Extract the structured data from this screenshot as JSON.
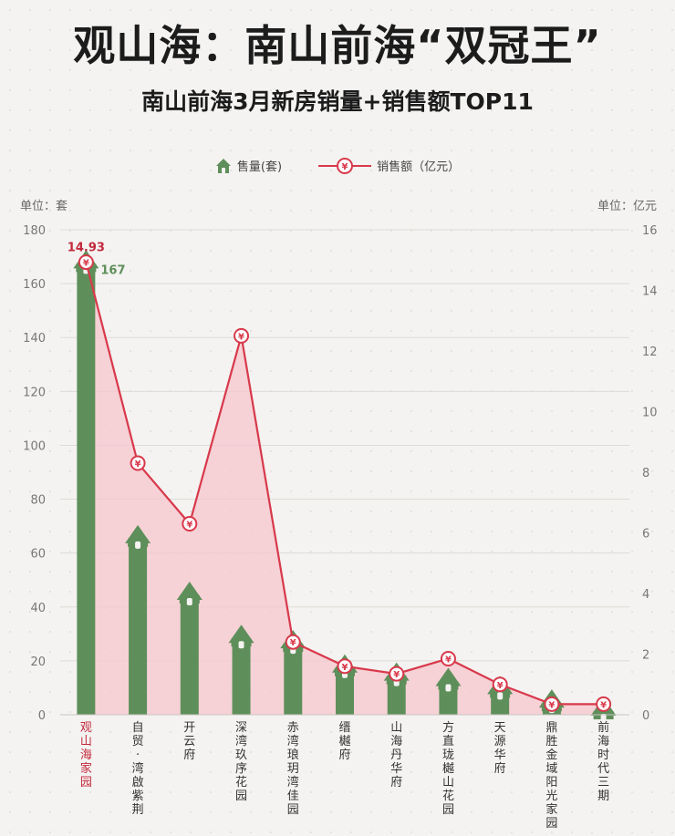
{
  "title": "观山海：南山前海“双冠王”",
  "subtitle": "南山前海3月新房销量+销售额TOP11",
  "legend": {
    "sales_label": "售量(套)",
    "amount_label": "销售额（亿元）"
  },
  "units": {
    "left": "单位：套",
    "right": "单位：亿元"
  },
  "colors": {
    "bar": "#5e8f5a",
    "line": "#d8394b",
    "area": "#f7c6cc",
    "highlight_label": "#c2283c"
  },
  "chart_data": {
    "type": "bar+line",
    "categories": [
      "观山海家园",
      "自贸·湾啟紫荆",
      "开云府",
      "深湾玖序花园",
      "赤湾琅玥湾佳园",
      "缙樾府",
      "山海丹华府",
      "方直珑樾山花园",
      "天源华府",
      "鼎胜金域阳光家园",
      "前海时代三期"
    ],
    "series": [
      {
        "name": "售量(套)",
        "type": "bar",
        "axis": "left",
        "values": [
          167,
          65,
          44,
          28,
          26,
          17,
          14,
          12,
          9,
          4,
          1
        ]
      },
      {
        "name": "销售额（亿元）",
        "type": "line",
        "axis": "right",
        "values": [
          14.93,
          8.3,
          6.3,
          12.5,
          2.4,
          1.6,
          1.35,
          1.85,
          1.0,
          0.35,
          0.35
        ]
      }
    ],
    "annotations": [
      {
        "series": 1,
        "index": 0,
        "text": "14.93"
      },
      {
        "series": 0,
        "index": 0,
        "text": "167"
      }
    ],
    "ylim_left": [
      0,
      180
    ],
    "yticks_left": [
      0,
      20,
      40,
      60,
      80,
      100,
      120,
      140,
      160,
      180
    ],
    "ylim_right": [
      0,
      16
    ],
    "yticks_right": [
      0,
      2,
      4,
      6,
      8,
      10,
      12,
      14,
      16
    ],
    "grid": true,
    "legend_position": "top"
  }
}
